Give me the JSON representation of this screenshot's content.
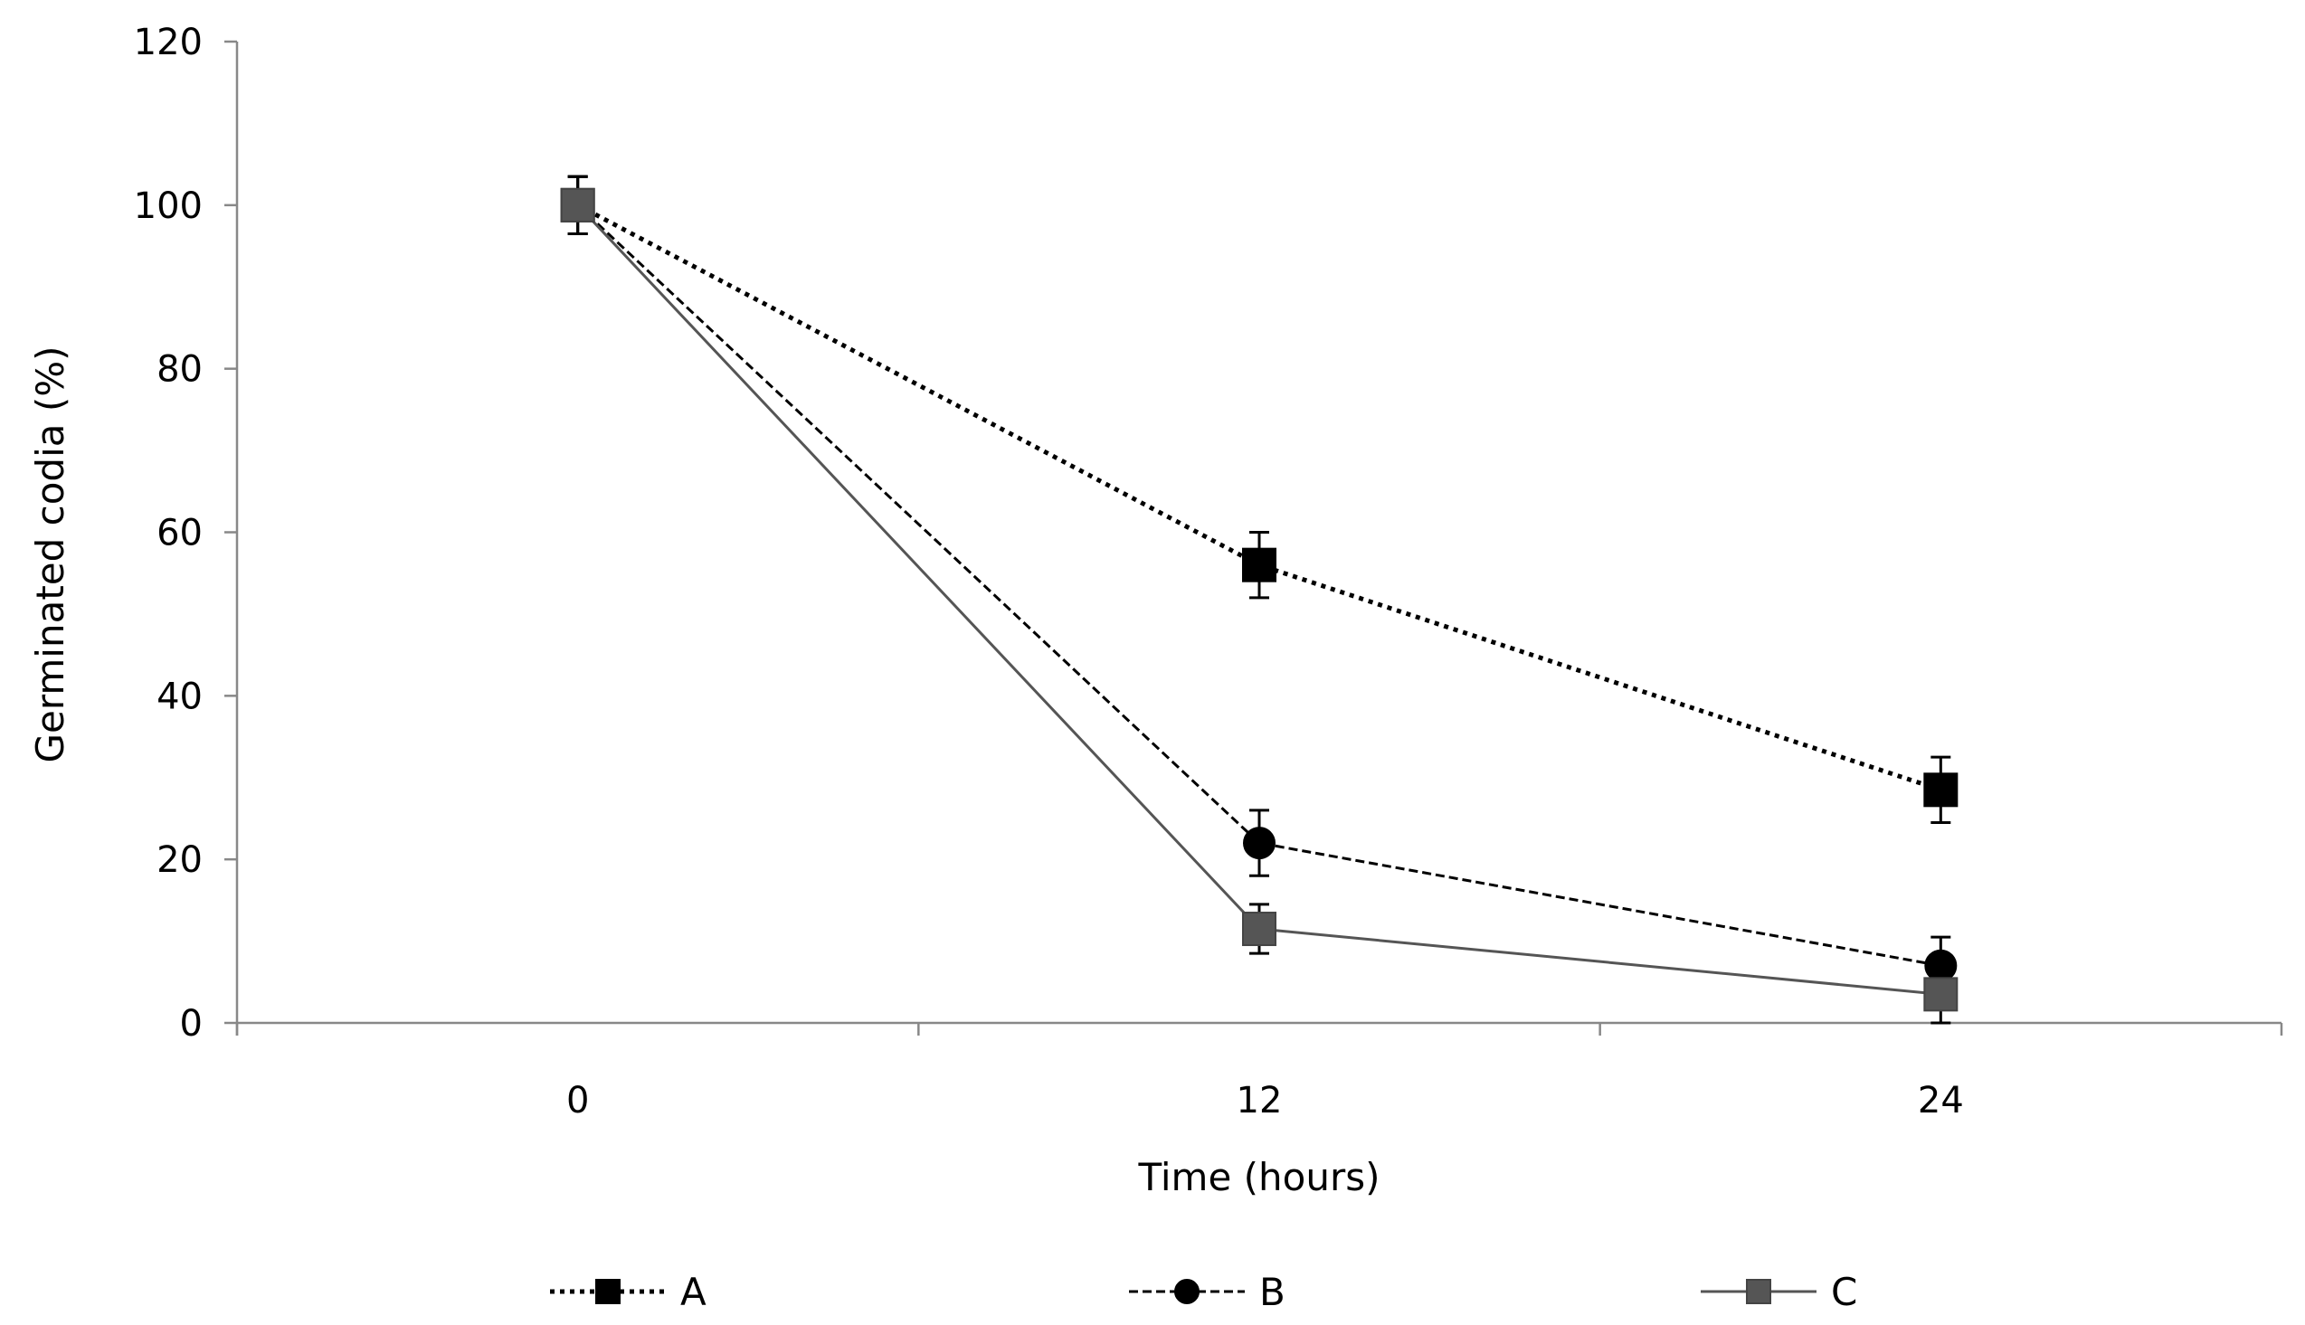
{
  "chart_data": {
    "type": "line",
    "x": [
      0,
      12,
      24
    ],
    "xlabel": "Time (hours)",
    "ylabel": "Germinated codia (%)",
    "ylim": [
      0,
      120
    ],
    "yticks": [
      0,
      20,
      40,
      60,
      80,
      100,
      120
    ],
    "xtick_labels": [
      "0",
      "12",
      "24"
    ],
    "grid": false,
    "legend_position": "bottom",
    "series": [
      {
        "name": "A",
        "values": [
          100,
          56,
          28.5
        ],
        "errors": [
          3.5,
          4,
          4
        ],
        "marker": "square",
        "line_style": "dotted",
        "color": "#000000"
      },
      {
        "name": "B",
        "values": [
          100,
          22,
          7
        ],
        "errors": [
          3.5,
          4,
          3.5
        ],
        "marker": "circle",
        "line_style": "dashed",
        "color": "#000000"
      },
      {
        "name": "C",
        "values": [
          100,
          11.5,
          3.5
        ],
        "errors": [
          3.5,
          3,
          3.5
        ],
        "marker": "square",
        "line_style": "solid",
        "color": "#555555"
      }
    ]
  }
}
